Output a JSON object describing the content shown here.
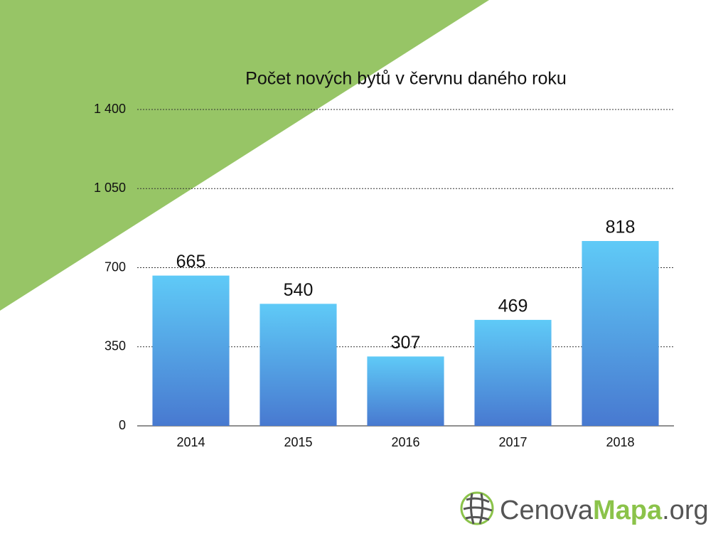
{
  "chart_data": {
    "type": "bar",
    "title": "Počet nových bytů v červnu daného roku",
    "categories": [
      "2014",
      "2015",
      "2016",
      "2017",
      "2018"
    ],
    "values": [
      665,
      540,
      307,
      469,
      818
    ],
    "gradient": [
      "#5fcaf7",
      "#4879d0"
    ],
    "ylim": [
      0,
      1400
    ],
    "yticks": [
      0,
      350,
      700,
      {
        "value": 1050,
        "label": "1 050"
      },
      {
        "value": 1400,
        "label": "1 400"
      }
    ],
    "grid": true
  },
  "logo": {
    "parts": [
      "Cenova",
      "Mapa",
      ".org"
    ]
  }
}
